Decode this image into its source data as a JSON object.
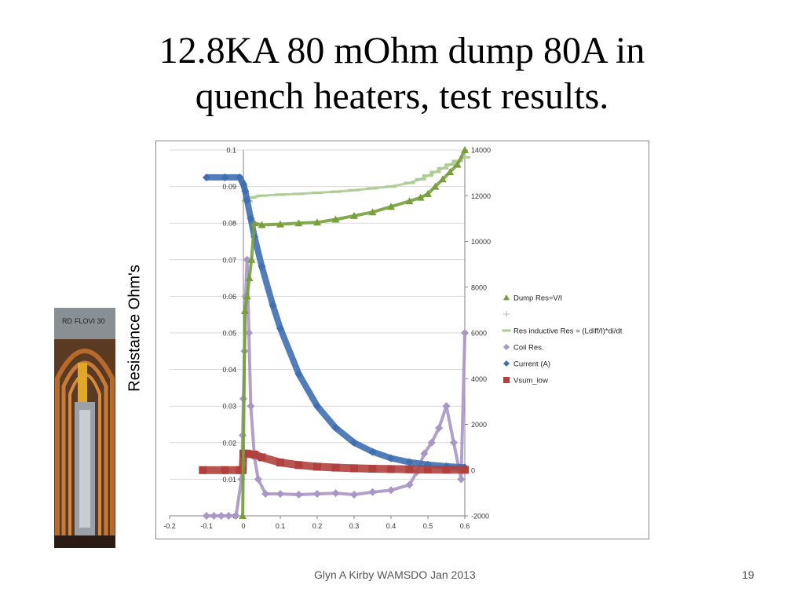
{
  "slide": {
    "title_line1": "12.8KA 80 mOhm dump 80A in",
    "title_line2": "quench heaters, test results.",
    "ylabel": "Resistance  Ohm's",
    "footer_author": "Glyn A Kirby  WAMSDO Jan 2013",
    "page_number": "19",
    "photo_label": "RD",
    "photo_text": "FLOVI 30"
  },
  "colors": {
    "dump_res": "#77a03c",
    "res_inductive": "#aecb92",
    "coil_res": "#a896c4",
    "current": "#3f6fb0",
    "vsum_low": "#b0413e",
    "grid": "#d9d9d9"
  },
  "chart_data": {
    "type": "scatter",
    "xlim": [
      -0.2,
      0.6
    ],
    "ylim_left": [
      0,
      0.1
    ],
    "ylim_right": [
      -2000,
      14000
    ],
    "x_ticks": [
      "-0.2",
      "-0.1",
      "0",
      "0.1",
      "0.2",
      "0.3",
      "0.4",
      "0.5",
      "0.6"
    ],
    "y_ticks_left": [
      "0",
      "0.01",
      "0.02",
      "0.03",
      "0.04",
      "0.05",
      "0.06",
      "0.07",
      "0.08",
      "0.09",
      "0.1"
    ],
    "y_ticks_right": [
      "-2000",
      "0",
      "2000",
      "4000",
      "6000",
      "8000",
      "10000",
      "12000",
      "14000"
    ],
    "legend_position": "right",
    "grid": "horizontal",
    "legend": [
      "Dump Res=V/I",
      "",
      "Res inductive Res = (Ldiff/I)*di/dt",
      "Coil Res.",
      "Current (A)",
      "Vsum_low"
    ],
    "series": [
      {
        "name": "Dump Res=V/I",
        "axis": "left",
        "marker": "triangle",
        "x": [
          -0.002,
          0.004,
          0.01,
          0.016,
          0.022,
          0.03,
          0.05,
          0.1,
          0.15,
          0.2,
          0.25,
          0.3,
          0.35,
          0.4,
          0.45,
          0.48,
          0.5,
          0.52,
          0.54,
          0.56,
          0.58,
          0.6
        ],
        "y": [
          0,
          0.056,
          0.06,
          0.065,
          0.07,
          0.08,
          0.0795,
          0.0797,
          0.08,
          0.0802,
          0.081,
          0.082,
          0.083,
          0.0845,
          0.086,
          0.087,
          0.088,
          0.09,
          0.092,
          0.094,
          0.096,
          0.1
        ]
      },
      {
        "name": "Res inductive Res = (Ldiff/I)*di/dt",
        "axis": "left",
        "marker": "dash",
        "x": [
          0.01,
          0.02,
          0.05,
          0.1,
          0.15,
          0.2,
          0.25,
          0.3,
          0.35,
          0.4,
          0.45,
          0.48,
          0.5,
          0.52,
          0.54,
          0.56,
          0.58,
          0.6
        ],
        "y": [
          0.086,
          0.087,
          0.0875,
          0.0878,
          0.088,
          0.0883,
          0.0886,
          0.089,
          0.0895,
          0.09,
          0.091,
          0.092,
          0.093,
          0.094,
          0.095,
          0.096,
          0.097,
          0.098
        ]
      },
      {
        "name": "Coil Res.",
        "axis": "left",
        "marker": "diamond",
        "x": [
          -0.1,
          -0.08,
          -0.06,
          -0.04,
          -0.02,
          -0.005,
          -0.002,
          0.0,
          0.003,
          0.006,
          0.01,
          0.015,
          0.02,
          0.03,
          0.04,
          0.06,
          0.1,
          0.15,
          0.2,
          0.25,
          0.3,
          0.35,
          0.4,
          0.45,
          0.47,
          0.49,
          0.51,
          0.53,
          0.55,
          0.57,
          0.59,
          0.6
        ],
        "y": [
          0,
          0,
          0,
          0,
          0,
          0.01,
          0.022,
          0.032,
          0.045,
          0.06,
          0.07,
          0.05,
          0.03,
          0.016,
          0.01,
          0.006,
          0.006,
          0.0058,
          0.006,
          0.0062,
          0.0058,
          0.0065,
          0.007,
          0.0085,
          0.012,
          0.017,
          0.02,
          0.024,
          0.03,
          0.02,
          0.01,
          0.05
        ]
      },
      {
        "name": "Current (A)",
        "axis": "right",
        "marker": "diamond",
        "x": [
          -0.1,
          -0.05,
          -0.01,
          0.0,
          0.005,
          0.01,
          0.02,
          0.03,
          0.05,
          0.08,
          0.1,
          0.15,
          0.2,
          0.25,
          0.3,
          0.35,
          0.4,
          0.45,
          0.5,
          0.55,
          0.6
        ],
        "y": [
          12800,
          12800,
          12800,
          12500,
          12200,
          11800,
          11000,
          10200,
          8900,
          7200,
          6200,
          4200,
          2800,
          1850,
          1200,
          800,
          520,
          350,
          240,
          170,
          120
        ]
      },
      {
        "name": "Vsum_low",
        "axis": "right",
        "marker": "square",
        "x": [
          -0.11,
          -0.05,
          -0.01,
          -0.002,
          0.0,
          0.01,
          0.03,
          0.05,
          0.1,
          0.15,
          0.2,
          0.25,
          0.3,
          0.35,
          0.4,
          0.45,
          0.5,
          0.55,
          0.6
        ],
        "y": [
          0,
          0,
          0,
          0,
          720,
          720,
          680,
          560,
          330,
          220,
          150,
          110,
          80,
          60,
          45,
          35,
          25,
          20,
          15
        ]
      }
    ]
  }
}
